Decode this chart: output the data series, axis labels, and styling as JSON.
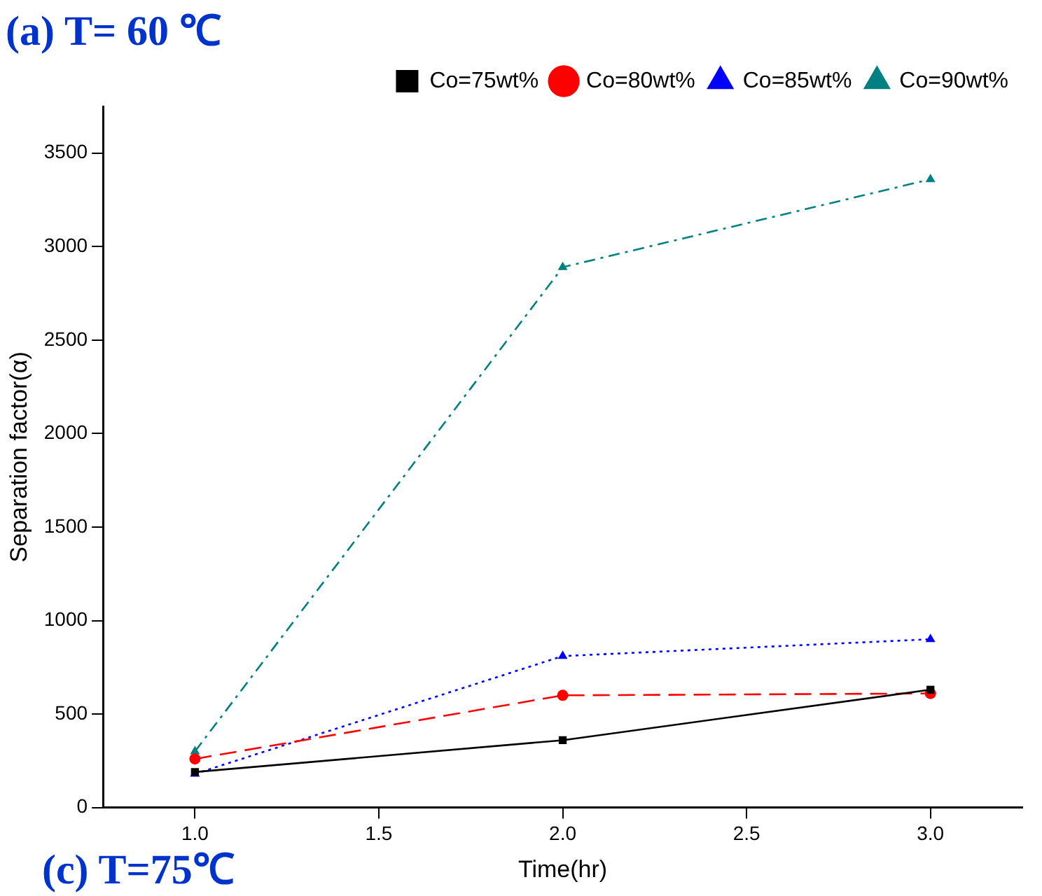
{
  "chart_data": {
    "type": "line",
    "title": "(a) T= 60 ℃",
    "xlabel": "Time(hr)",
    "ylabel": "Separation factor(α)",
    "annotations": [
      "(c) T=75℃"
    ],
    "x": [
      1.0,
      2.0,
      3.0
    ],
    "xlim": [
      0.75,
      3.25
    ],
    "xticks": [
      {
        "value": 1,
        "label": "1.0"
      },
      {
        "value": 1.5,
        "label": "1.5"
      },
      {
        "value": 2,
        "label": "2.0"
      },
      {
        "value": 2.5,
        "label": "2.5"
      },
      {
        "value": 3,
        "label": "3.0"
      }
    ],
    "ylim": [
      0,
      3750
    ],
    "yticks": [
      0,
      500,
      1000,
      1500,
      2000,
      2500,
      3000,
      3500
    ],
    "grid": false,
    "legend": "top right",
    "series": [
      {
        "name": "Co=75wt%",
        "color": "#000000",
        "values": [
          190,
          360,
          630
        ],
        "marker": "square",
        "line_style": "solid"
      },
      {
        "name": "Co=80wt%",
        "color": "#ff0000",
        "values": [
          260,
          600,
          610
        ],
        "marker": "circle",
        "line_style": "dashed"
      },
      {
        "name": "Co=85wt%",
        "color": "#0000ff",
        "values": [
          180,
          810,
          900
        ],
        "marker": "triangle",
        "line_style": "dotted"
      },
      {
        "name": "Co=90wt%",
        "color": "#008080",
        "values": [
          300,
          2890,
          3360
        ],
        "marker": "triangle",
        "line_style": "dashdot"
      }
    ]
  }
}
